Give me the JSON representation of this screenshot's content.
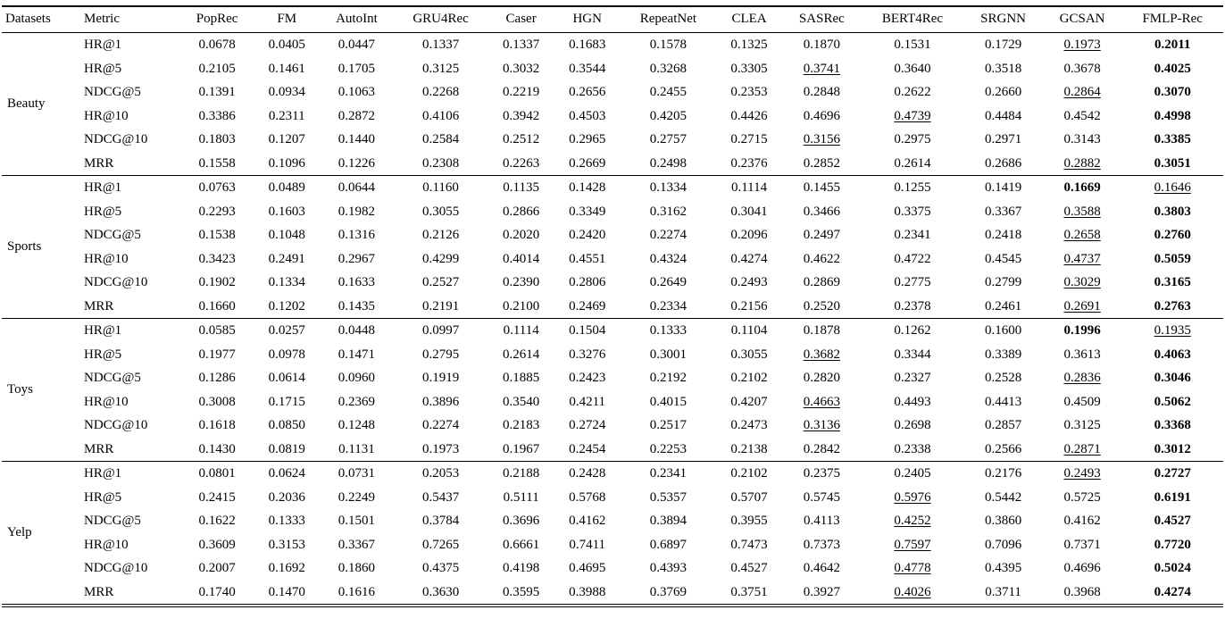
{
  "table": {
    "columns": [
      "Datasets",
      "Metric",
      "PopRec",
      "FM",
      "AutoInt",
      "GRU4Rec",
      "Caser",
      "HGN",
      "RepeatNet",
      "CLEA",
      "SASRec",
      "BERT4Rec",
      "SRGNN",
      "GCSAN",
      "FMLP-Rec"
    ],
    "groups": [
      {
        "dataset": "Beauty",
        "rows": [
          {
            "metric": "HR@1",
            "values": [
              "0.0678",
              "0.0405",
              "0.0447",
              "0.1337",
              "0.1337",
              "0.1683",
              "0.1578",
              "0.1325",
              "0.1870",
              "0.1531",
              "0.1729",
              "0.1973",
              "0.2011"
            ],
            "underline": 11,
            "bold": 12
          },
          {
            "metric": "HR@5",
            "values": [
              "0.2105",
              "0.1461",
              "0.1705",
              "0.3125",
              "0.3032",
              "0.3544",
              "0.3268",
              "0.3305",
              "0.3741",
              "0.3640",
              "0.3518",
              "0.3678",
              "0.4025"
            ],
            "underline": 8,
            "bold": 12
          },
          {
            "metric": "NDCG@5",
            "values": [
              "0.1391",
              "0.0934",
              "0.1063",
              "0.2268",
              "0.2219",
              "0.2656",
              "0.2455",
              "0.2353",
              "0.2848",
              "0.2622",
              "0.2660",
              "0.2864",
              "0.3070"
            ],
            "underline": 11,
            "bold": 12
          },
          {
            "metric": "HR@10",
            "values": [
              "0.3386",
              "0.2311",
              "0.2872",
              "0.4106",
              "0.3942",
              "0.4503",
              "0.4205",
              "0.4426",
              "0.4696",
              "0.4739",
              "0.4484",
              "0.4542",
              "0.4998"
            ],
            "underline": 9,
            "bold": 12
          },
          {
            "metric": "NDCG@10",
            "values": [
              "0.1803",
              "0.1207",
              "0.1440",
              "0.2584",
              "0.2512",
              "0.2965",
              "0.2757",
              "0.2715",
              "0.3156",
              "0.2975",
              "0.2971",
              "0.3143",
              "0.3385"
            ],
            "underline": 8,
            "bold": 12
          },
          {
            "metric": "MRR",
            "values": [
              "0.1558",
              "0.1096",
              "0.1226",
              "0.2308",
              "0.2263",
              "0.2669",
              "0.2498",
              "0.2376",
              "0.2852",
              "0.2614",
              "0.2686",
              "0.2882",
              "0.3051"
            ],
            "underline": 11,
            "bold": 12
          }
        ]
      },
      {
        "dataset": "Sports",
        "rows": [
          {
            "metric": "HR@1",
            "values": [
              "0.0763",
              "0.0489",
              "0.0644",
              "0.1160",
              "0.1135",
              "0.1428",
              "0.1334",
              "0.1114",
              "0.1455",
              "0.1255",
              "0.1419",
              "0.1669",
              "0.1646"
            ],
            "bold": 11,
            "underline": 12
          },
          {
            "metric": "HR@5",
            "values": [
              "0.2293",
              "0.1603",
              "0.1982",
              "0.3055",
              "0.2866",
              "0.3349",
              "0.3162",
              "0.3041",
              "0.3466",
              "0.3375",
              "0.3367",
              "0.3588",
              "0.3803"
            ],
            "underline": 11,
            "bold": 12
          },
          {
            "metric": "NDCG@5",
            "values": [
              "0.1538",
              "0.1048",
              "0.1316",
              "0.2126",
              "0.2020",
              "0.2420",
              "0.2274",
              "0.2096",
              "0.2497",
              "0.2341",
              "0.2418",
              "0.2658",
              "0.2760"
            ],
            "underline": 11,
            "bold": 12
          },
          {
            "metric": "HR@10",
            "values": [
              "0.3423",
              "0.2491",
              "0.2967",
              "0.4299",
              "0.4014",
              "0.4551",
              "0.4324",
              "0.4274",
              "0.4622",
              "0.4722",
              "0.4545",
              "0.4737",
              "0.5059"
            ],
            "underline": 11,
            "bold": 12
          },
          {
            "metric": "NDCG@10",
            "values": [
              "0.1902",
              "0.1334",
              "0.1633",
              "0.2527",
              "0.2390",
              "0.2806",
              "0.2649",
              "0.2493",
              "0.2869",
              "0.2775",
              "0.2799",
              "0.3029",
              "0.3165"
            ],
            "underline": 11,
            "bold": 12
          },
          {
            "metric": "MRR",
            "values": [
              "0.1660",
              "0.1202",
              "0.1435",
              "0.2191",
              "0.2100",
              "0.2469",
              "0.2334",
              "0.2156",
              "0.2520",
              "0.2378",
              "0.2461",
              "0.2691",
              "0.2763"
            ],
            "underline": 11,
            "bold": 12
          }
        ]
      },
      {
        "dataset": "Toys",
        "rows": [
          {
            "metric": "HR@1",
            "values": [
              "0.0585",
              "0.0257",
              "0.0448",
              "0.0997",
              "0.1114",
              "0.1504",
              "0.1333",
              "0.1104",
              "0.1878",
              "0.1262",
              "0.1600",
              "0.1996",
              "0.1935"
            ],
            "bold": 11,
            "underline": 12
          },
          {
            "metric": "HR@5",
            "values": [
              "0.1977",
              "0.0978",
              "0.1471",
              "0.2795",
              "0.2614",
              "0.3276",
              "0.3001",
              "0.3055",
              "0.3682",
              "0.3344",
              "0.3389",
              "0.3613",
              "0.4063"
            ],
            "underline": 8,
            "bold": 12
          },
          {
            "metric": "NDCG@5",
            "values": [
              "0.1286",
              "0.0614",
              "0.0960",
              "0.1919",
              "0.1885",
              "0.2423",
              "0.2192",
              "0.2102",
              "0.2820",
              "0.2327",
              "0.2528",
              "0.2836",
              "0.3046"
            ],
            "underline": 11,
            "bold": 12
          },
          {
            "metric": "HR@10",
            "values": [
              "0.3008",
              "0.1715",
              "0.2369",
              "0.3896",
              "0.3540",
              "0.4211",
              "0.4015",
              "0.4207",
              "0.4663",
              "0.4493",
              "0.4413",
              "0.4509",
              "0.5062"
            ],
            "underline": 8,
            "bold": 12
          },
          {
            "metric": "NDCG@10",
            "values": [
              "0.1618",
              "0.0850",
              "0.1248",
              "0.2274",
              "0.2183",
              "0.2724",
              "0.2517",
              "0.2473",
              "0.3136",
              "0.2698",
              "0.2857",
              "0.3125",
              "0.3368"
            ],
            "underline": 8,
            "bold": 12
          },
          {
            "metric": "MRR",
            "values": [
              "0.1430",
              "0.0819",
              "0.1131",
              "0.1973",
              "0.1967",
              "0.2454",
              "0.2253",
              "0.2138",
              "0.2842",
              "0.2338",
              "0.2566",
              "0.2871",
              "0.3012"
            ],
            "underline": 11,
            "bold": 12
          }
        ]
      },
      {
        "dataset": "Yelp",
        "rows": [
          {
            "metric": "HR@1",
            "values": [
              "0.0801",
              "0.0624",
              "0.0731",
              "0.2053",
              "0.2188",
              "0.2428",
              "0.2341",
              "0.2102",
              "0.2375",
              "0.2405",
              "0.2176",
              "0.2493",
              "0.2727"
            ],
            "underline": 11,
            "bold": 12
          },
          {
            "metric": "HR@5",
            "values": [
              "0.2415",
              "0.2036",
              "0.2249",
              "0.5437",
              "0.5111",
              "0.5768",
              "0.5357",
              "0.5707",
              "0.5745",
              "0.5976",
              "0.5442",
              "0.5725",
              "0.6191"
            ],
            "underline": 9,
            "bold": 12
          },
          {
            "metric": "NDCG@5",
            "values": [
              "0.1622",
              "0.1333",
              "0.1501",
              "0.3784",
              "0.3696",
              "0.4162",
              "0.3894",
              "0.3955",
              "0.4113",
              "0.4252",
              "0.3860",
              "0.4162",
              "0.4527"
            ],
            "underline": 9,
            "bold": 12
          },
          {
            "metric": "HR@10",
            "values": [
              "0.3609",
              "0.3153",
              "0.3367",
              "0.7265",
              "0.6661",
              "0.7411",
              "0.6897",
              "0.7473",
              "0.7373",
              "0.7597",
              "0.7096",
              "0.7371",
              "0.7720"
            ],
            "underline": 9,
            "bold": 12
          },
          {
            "metric": "NDCG@10",
            "values": [
              "0.2007",
              "0.1692",
              "0.1860",
              "0.4375",
              "0.4198",
              "0.4695",
              "0.4393",
              "0.4527",
              "0.4642",
              "0.4778",
              "0.4395",
              "0.4696",
              "0.5024"
            ],
            "underline": 9,
            "bold": 12
          },
          {
            "metric": "MRR",
            "values": [
              "0.1740",
              "0.1470",
              "0.1616",
              "0.3630",
              "0.3595",
              "0.3988",
              "0.3769",
              "0.3751",
              "0.3927",
              "0.4026",
              "0.3711",
              "0.3968",
              "0.4274"
            ],
            "underline": 9,
            "bold": 12
          }
        ]
      }
    ]
  }
}
